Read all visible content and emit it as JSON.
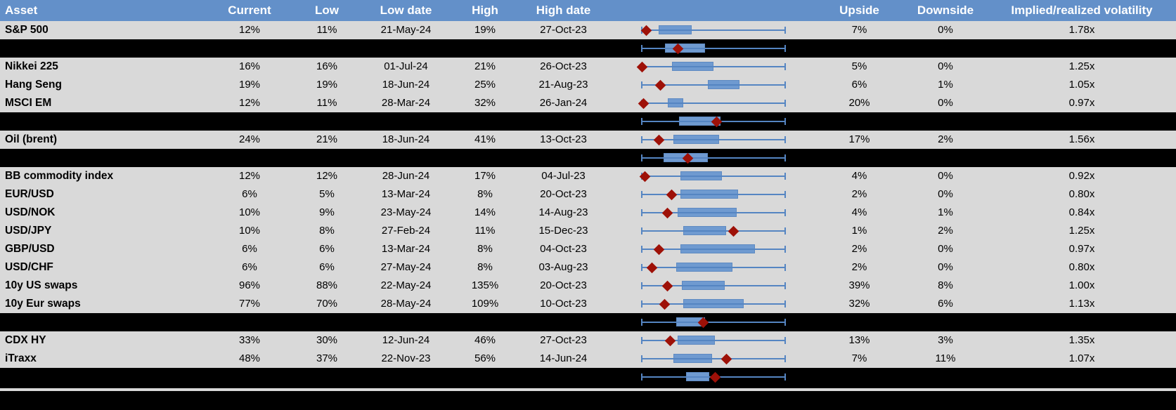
{
  "colors": {
    "header_bg": "#6390c9",
    "header_text": "#ffffff",
    "row_bg": "#d9d9d9",
    "summary_row_bg": "#000000",
    "boxplot_box_fill": "#6f9ad0",
    "boxplot_whisker": "#5585c2",
    "current_marker": "#9e1108",
    "body_text": "#000000"
  },
  "chart_data": {
    "type": "table",
    "title": "",
    "columns": [
      {
        "id": "asset",
        "label": "Asset"
      },
      {
        "id": "current",
        "label": "Current"
      },
      {
        "id": "low",
        "label": "Low"
      },
      {
        "id": "low_date",
        "label": "Low date"
      },
      {
        "id": "high",
        "label": "High"
      },
      {
        "id": "high_date",
        "label": "High date"
      },
      {
        "id": "range_boxplot",
        "label": ""
      },
      {
        "id": "upside",
        "label": "Upside"
      },
      {
        "id": "downside",
        "label": "Downside"
      },
      {
        "id": "implied_realized",
        "label": "Implied/realized volatility"
      }
    ],
    "boxplot_legend": {
      "whisker": "low-high range (normalized 0-1 across full span)",
      "box": "interquartile band, fraction of range",
      "marker": "current level, red diamond, fraction of range"
    },
    "rows": [
      {
        "type": "data",
        "asset": "S&P 500",
        "current": "12%",
        "low": "11%",
        "low_date": "21-May-24",
        "high": "19%",
        "high_date": "27-Oct-23",
        "upside": "7%",
        "downside": "0%",
        "implied_realized": "1.78x",
        "boxplot": {
          "range_min": 0,
          "range_max": 1,
          "box_start": 0.12,
          "box_end": 0.35,
          "marker": 0.03
        }
      },
      {
        "type": "summary",
        "asset": "",
        "current": "",
        "low": "",
        "low_date": "",
        "high": "",
        "high_date": "",
        "upside": "",
        "downside": "",
        "implied_realized": "",
        "boxplot": {
          "range_min": 0,
          "range_max": 1,
          "box_start": 0.16,
          "box_end": 0.44,
          "marker": 0.25
        }
      },
      {
        "type": "data",
        "asset": "Nikkei 225",
        "current": "16%",
        "low": "16%",
        "low_date": "01-Jul-24",
        "high": "21%",
        "high_date": "26-Oct-23",
        "upside": "5%",
        "downside": "0%",
        "implied_realized": "1.25x",
        "boxplot": {
          "range_min": 0,
          "range_max": 1,
          "box_start": 0.21,
          "box_end": 0.5,
          "marker": 0.0
        }
      },
      {
        "type": "data",
        "asset": "Hang Seng",
        "current": "19%",
        "low": "19%",
        "low_date": "18-Jun-24",
        "high": "25%",
        "high_date": "21-Aug-23",
        "upside": "6%",
        "downside": "1%",
        "implied_realized": "1.05x",
        "boxplot": {
          "range_min": 0,
          "range_max": 1,
          "box_start": 0.46,
          "box_end": 0.68,
          "marker": 0.13
        }
      },
      {
        "type": "data",
        "asset": "MSCI EM",
        "current": "12%",
        "low": "11%",
        "low_date": "28-Mar-24",
        "high": "32%",
        "high_date": "26-Jan-24",
        "upside": "20%",
        "downside": "0%",
        "implied_realized": "0.97x",
        "boxplot": {
          "range_min": 0,
          "range_max": 1,
          "box_start": 0.18,
          "box_end": 0.29,
          "marker": 0.01
        }
      },
      {
        "type": "summary",
        "asset": "",
        "current": "",
        "low": "",
        "low_date": "",
        "high": "",
        "high_date": "",
        "upside": "",
        "downside": "",
        "implied_realized": "",
        "boxplot": {
          "range_min": 0,
          "range_max": 1,
          "box_start": 0.26,
          "box_end": 0.55,
          "marker": 0.52
        }
      },
      {
        "type": "data",
        "asset": "Oil (brent)",
        "current": "24%",
        "low": "21%",
        "low_date": "18-Jun-24",
        "high": "41%",
        "high_date": "13-Oct-23",
        "upside": "17%",
        "downside": "2%",
        "implied_realized": "1.56x",
        "boxplot": {
          "range_min": 0,
          "range_max": 1,
          "box_start": 0.22,
          "box_end": 0.54,
          "marker": 0.12
        }
      },
      {
        "type": "summary",
        "asset": "",
        "current": "",
        "low": "",
        "low_date": "",
        "high": "",
        "high_date": "",
        "upside": "",
        "downside": "",
        "implied_realized": "",
        "boxplot": {
          "range_min": 0,
          "range_max": 1,
          "box_start": 0.15,
          "box_end": 0.46,
          "marker": 0.32
        }
      },
      {
        "type": "data",
        "asset": "BB commodity index",
        "current": "12%",
        "low": "12%",
        "low_date": "28-Jun-24",
        "high": "17%",
        "high_date": "04-Jul-23",
        "upside": "4%",
        "downside": "0%",
        "implied_realized": "0.92x",
        "boxplot": {
          "range_min": 0,
          "range_max": 1,
          "box_start": 0.27,
          "box_end": 0.56,
          "marker": 0.02
        }
      },
      {
        "type": "data",
        "asset": "EUR/USD",
        "current": "6%",
        "low": "5%",
        "low_date": "13-Mar-24",
        "high": "8%",
        "high_date": "20-Oct-23",
        "upside": "2%",
        "downside": "0%",
        "implied_realized": "0.80x",
        "boxplot": {
          "range_min": 0,
          "range_max": 1,
          "box_start": 0.27,
          "box_end": 0.67,
          "marker": 0.21
        }
      },
      {
        "type": "data",
        "asset": "USD/NOK",
        "current": "10%",
        "low": "9%",
        "low_date": "23-May-24",
        "high": "14%",
        "high_date": "14-Aug-23",
        "upside": "4%",
        "downside": "1%",
        "implied_realized": "0.84x",
        "boxplot": {
          "range_min": 0,
          "range_max": 1,
          "box_start": 0.25,
          "box_end": 0.66,
          "marker": 0.18
        }
      },
      {
        "type": "data",
        "asset": "USD/JPY",
        "current": "10%",
        "low": "8%",
        "low_date": "27-Feb-24",
        "high": "11%",
        "high_date": "15-Dec-23",
        "upside": "1%",
        "downside": "2%",
        "implied_realized": "1.25x",
        "boxplot": {
          "range_min": 0,
          "range_max": 1,
          "box_start": 0.29,
          "box_end": 0.59,
          "marker": 0.64
        }
      },
      {
        "type": "data",
        "asset": "GBP/USD",
        "current": "6%",
        "low": "6%",
        "low_date": "13-Mar-24",
        "high": "8%",
        "high_date": "04-Oct-23",
        "upside": "2%",
        "downside": "0%",
        "implied_realized": "0.97x",
        "boxplot": {
          "range_min": 0,
          "range_max": 1,
          "box_start": 0.27,
          "box_end": 0.79,
          "marker": 0.12
        }
      },
      {
        "type": "data",
        "asset": "USD/CHF",
        "current": "6%",
        "low": "6%",
        "low_date": "27-May-24",
        "high": "8%",
        "high_date": "03-Aug-23",
        "upside": "2%",
        "downside": "0%",
        "implied_realized": "0.80x",
        "boxplot": {
          "range_min": 0,
          "range_max": 1,
          "box_start": 0.24,
          "box_end": 0.63,
          "marker": 0.07
        }
      },
      {
        "type": "data",
        "asset": "10y US swaps",
        "current": "96%",
        "low": "88%",
        "low_date": "22-May-24",
        "high": "135%",
        "high_date": "20-Oct-23",
        "upside": "39%",
        "downside": "8%",
        "implied_realized": "1.00x",
        "boxplot": {
          "range_min": 0,
          "range_max": 1,
          "box_start": 0.28,
          "box_end": 0.58,
          "marker": 0.18
        }
      },
      {
        "type": "data",
        "asset": "10y Eur swaps",
        "current": "77%",
        "low": "70%",
        "low_date": "28-May-24",
        "high": "109%",
        "high_date": "10-Oct-23",
        "upside": "32%",
        "downside": "6%",
        "implied_realized": "1.13x",
        "boxplot": {
          "range_min": 0,
          "range_max": 1,
          "box_start": 0.29,
          "box_end": 0.71,
          "marker": 0.16
        }
      },
      {
        "type": "summary",
        "asset": "",
        "current": "",
        "low": "",
        "low_date": "",
        "high": "",
        "high_date": "",
        "upside": "",
        "downside": "",
        "implied_realized": "",
        "boxplot": {
          "range_min": 0,
          "range_max": 1,
          "box_start": 0.24,
          "box_end": 0.44,
          "marker": 0.43
        }
      },
      {
        "type": "data",
        "asset": "CDX HY",
        "current": "33%",
        "low": "30%",
        "low_date": "12-Jun-24",
        "high": "46%",
        "high_date": "27-Oct-23",
        "upside": "13%",
        "downside": "3%",
        "implied_realized": "1.35x",
        "boxplot": {
          "range_min": 0,
          "range_max": 1,
          "box_start": 0.25,
          "box_end": 0.51,
          "marker": 0.2
        }
      },
      {
        "type": "data",
        "asset": "iTraxx",
        "current": "48%",
        "low": "37%",
        "low_date": "22-Nov-23",
        "high": "56%",
        "high_date": "14-Jun-24",
        "upside": "7%",
        "downside": "11%",
        "implied_realized": "1.07x",
        "boxplot": {
          "range_min": 0,
          "range_max": 1,
          "box_start": 0.22,
          "box_end": 0.49,
          "marker": 0.59
        }
      },
      {
        "type": "summary",
        "asset": "",
        "current": "",
        "low": "",
        "low_date": "",
        "high": "",
        "high_date": "",
        "upside": "",
        "downside": "",
        "implied_realized": "",
        "boxplot": {
          "range_min": 0,
          "range_max": 1,
          "box_start": 0.31,
          "box_end": 0.47,
          "marker": 0.51
        }
      }
    ]
  }
}
